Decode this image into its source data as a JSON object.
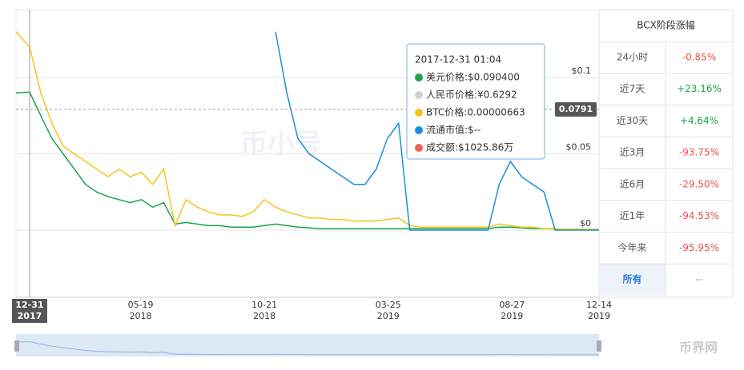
{
  "chart_data": {
    "type": "line",
    "x": [
      "2017-12-14",
      "2017-12-31",
      "2018-01-14",
      "2018-01-28",
      "2018-02-11",
      "2018-02-25",
      "2018-03-11",
      "2018-03-25",
      "2018-04-08",
      "2018-04-22",
      "2018-05-06",
      "2018-05-20",
      "2018-06-03",
      "2018-06-17",
      "2018-07-01",
      "2018-07-15",
      "2018-07-29",
      "2018-08-12",
      "2018-08-26",
      "2018-09-09",
      "2018-09-23",
      "2018-10-07",
      "2018-10-21",
      "2018-11-04",
      "2018-11-18",
      "2018-12-02",
      "2018-12-16",
      "2018-12-30",
      "2019-01-13",
      "2019-01-27",
      "2019-02-10",
      "2019-02-24",
      "2019-03-10",
      "2019-03-24",
      "2019-04-07",
      "2019-04-21",
      "2019-05-05",
      "2019-05-19",
      "2019-06-02",
      "2019-06-16",
      "2019-06-30",
      "2019-07-14",
      "2019-07-28",
      "2019-08-11",
      "2019-08-25",
      "2019-09-08",
      "2019-09-22",
      "2019-10-06",
      "2019-10-20",
      "2019-11-03",
      "2019-11-17",
      "2019-12-01",
      "2019-12-14"
    ],
    "series": [
      {
        "name": "美元价格",
        "color": "#1aa34a",
        "values": [
          0.09,
          0.0904,
          0.075,
          0.06,
          0.05,
          0.04,
          0.03,
          0.025,
          0.022,
          0.02,
          0.018,
          0.02,
          0.015,
          0.018,
          0.004,
          0.005,
          0.004,
          0.003,
          0.003,
          0.002,
          0.002,
          0.002,
          0.003,
          0.004,
          0.003,
          0.002,
          0.0015,
          0.001,
          0.001,
          0.001,
          0.001,
          0.001,
          0.001,
          0.001,
          0.001,
          0.001,
          0.001,
          0.001,
          0.001,
          0.001,
          0.001,
          0.001,
          0.001,
          0.002,
          0.002,
          0.0015,
          0.001,
          0.001,
          0.0008,
          0.0005,
          0.0005,
          0.0005,
          0.0005
        ]
      },
      {
        "name": "BTC价格",
        "color": "#f5c518",
        "values": [
          0.13,
          0.12,
          0.09,
          0.07,
          0.055,
          0.05,
          0.045,
          0.04,
          0.035,
          0.04,
          0.035,
          0.038,
          0.03,
          0.04,
          0.003,
          0.02,
          0.015,
          0.012,
          0.01,
          0.01,
          0.009,
          0.012,
          0.02,
          0.015,
          0.012,
          0.01,
          0.008,
          0.008,
          0.007,
          0.007,
          0.006,
          0.006,
          0.006,
          0.007,
          0.008,
          0.003,
          0.002,
          0.002,
          0.002,
          0.002,
          0.002,
          0.002,
          0.002,
          0.004,
          0.003,
          0.002,
          0.002,
          0.001,
          0.001,
          0.0005,
          0.0005,
          0.0005,
          0.0005
        ]
      },
      {
        "name": "流通市值",
        "color": "#1a8fe0",
        "values": [
          null,
          null,
          null,
          null,
          null,
          null,
          null,
          null,
          null,
          null,
          null,
          null,
          null,
          null,
          null,
          null,
          null,
          null,
          null,
          null,
          null,
          null,
          null,
          0.13,
          0.09,
          0.06,
          0.05,
          0.045,
          0.04,
          0.035,
          0.03,
          0.03,
          0.04,
          0.06,
          0.07,
          0,
          0,
          0,
          0,
          0,
          0,
          0,
          0,
          0.03,
          0.045,
          0.035,
          0.03,
          0.025,
          0,
          0,
          0,
          0,
          0
        ]
      }
    ],
    "xlim": [
      "2017-12-14",
      "2019-12-14"
    ],
    "xticks": [
      {
        "value": "2018-05-19",
        "label": "05-19",
        "year": "2018"
      },
      {
        "value": "2018-10-21",
        "label": "10-21",
        "year": "2018"
      },
      {
        "value": "2019-03-25",
        "label": "03-25",
        "year": "2019"
      },
      {
        "value": "2019-08-27",
        "label": "08-27",
        "year": "2019"
      },
      {
        "value": "2019-12-14",
        "label": "12-14",
        "year": "2019"
      }
    ],
    "ylim": [
      0,
      0.1445
    ],
    "yticks": [
      {
        "value": 0,
        "label": "$0"
      },
      {
        "value": 0.05,
        "label": "$0.05"
      },
      {
        "value": 0.1,
        "label": "$0.1"
      }
    ],
    "grid": true,
    "crosshair": {
      "x": {
        "value": "2017-12-31",
        "label": "12-31",
        "year": "2017"
      },
      "y": 0.0791
    },
    "tooltip": {
      "title": "2017-12-31 01:04",
      "items": [
        {
          "text": "美元价格:$0.090400",
          "color": "#1aa34a"
        },
        {
          "text": "人民币价格:¥0.6292",
          "color": "#d0d0d0"
        },
        {
          "text": "BTC价格:0.00000663",
          "color": "#f5c518"
        },
        {
          "text": "流通市值:$--",
          "color": "#1a8fe0"
        },
        {
          "text": "成交额:$1025.86万",
          "color": "#f0605a"
        }
      ]
    },
    "watermarks": [
      "币小号",
      "币界网"
    ]
  },
  "table": {
    "title": "BCX阶段涨幅",
    "rows": [
      {
        "label": "24小时",
        "value": "-0.85%",
        "color": "#f0504a"
      },
      {
        "label": "近7天",
        "value": "+23.16%",
        "color": "#1aa34a"
      },
      {
        "label": "近30天",
        "value": "+4.64%",
        "color": "#1aa34a"
      },
      {
        "label": "近3月",
        "value": "-93.75%",
        "color": "#f0504a"
      },
      {
        "label": "近6月",
        "value": "-29.50%",
        "color": "#f0504a"
      },
      {
        "label": "近1年",
        "value": "-94.53%",
        "color": "#f0504a"
      },
      {
        "label": "今年来",
        "value": "-95.95%",
        "color": "#f0504a"
      },
      {
        "label": "所有",
        "value": "--",
        "color": "#999999"
      }
    ]
  }
}
